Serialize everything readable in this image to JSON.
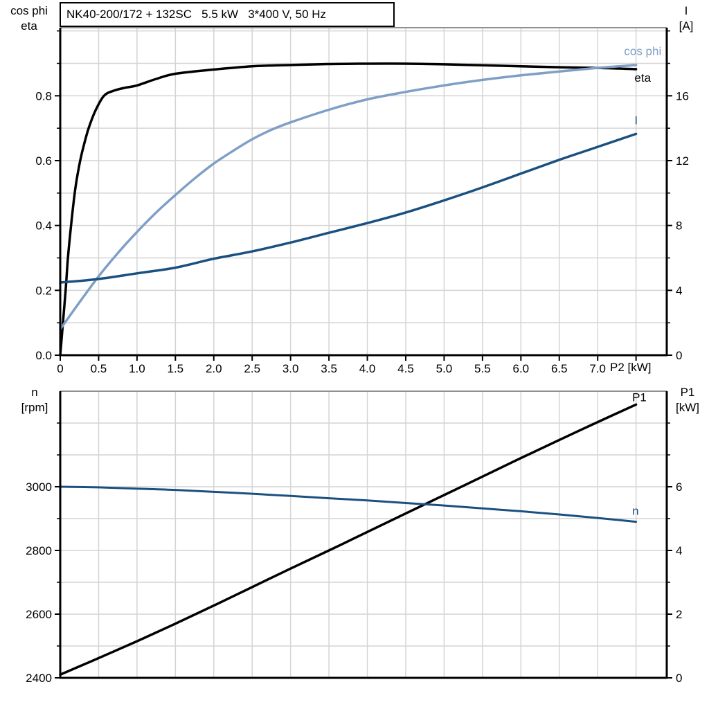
{
  "colors": {
    "black": "#000000",
    "light_blue": "#7f9fc6",
    "dark_blue": "#1a5080",
    "grid": "#d4d4d4",
    "top_border": "#909090",
    "axis": "#000000"
  },
  "chart_data": [
    {
      "type": "line",
      "title": "NK40-200/172 + 132SC   5.5 kW   3*400 V, 50 Hz",
      "xlabel": "P2 [kW]",
      "x_range": [
        0,
        7.9
      ],
      "x_grid": [
        0.5,
        1,
        1.5,
        2,
        2.5,
        3,
        3.5,
        4,
        4.5,
        5,
        5.5,
        6,
        6.5,
        7,
        7.5
      ],
      "x_ticks": [
        {
          "v": 0,
          "l": "0"
        },
        {
          "v": 0.5,
          "l": "0.5"
        },
        {
          "v": 1,
          "l": "1.0"
        },
        {
          "v": 1.5,
          "l": "1.5"
        },
        {
          "v": 2,
          "l": "2.0"
        },
        {
          "v": 2.5,
          "l": "2.5"
        },
        {
          "v": 3,
          "l": "3.0"
        },
        {
          "v": 3.5,
          "l": "3.5"
        },
        {
          "v": 4,
          "l": "4.0"
        },
        {
          "v": 4.5,
          "l": "4.5"
        },
        {
          "v": 5,
          "l": "5.0"
        },
        {
          "v": 5.5,
          "l": "5.5"
        },
        {
          "v": 6,
          "l": "6.0"
        },
        {
          "v": 6.5,
          "l": "6.5"
        },
        {
          "v": 7,
          "l": "7.0"
        },
        {
          "v": 7.5,
          "l": ""
        }
      ],
      "left_axis": {
        "title": [
          "cos phi",
          "eta"
        ],
        "range": [
          0,
          1.01
        ],
        "ticks": [
          {
            "v": 0,
            "l": "0.0"
          },
          {
            "v": 0.2,
            "l": "0.2"
          },
          {
            "v": 0.4,
            "l": "0.4"
          },
          {
            "v": 0.6,
            "l": "0.6"
          },
          {
            "v": 0.8,
            "l": "0.8"
          }
        ],
        "minor": [
          0.1,
          0.3,
          0.5,
          0.7,
          0.9,
          1.0
        ],
        "grid": [
          0.1,
          0.2,
          0.3,
          0.4,
          0.5,
          0.6,
          0.7,
          0.8,
          0.9,
          1.0
        ]
      },
      "right_axis": {
        "title": [
          "I",
          "[A]"
        ],
        "range": [
          0,
          20.2
        ],
        "ticks": [
          {
            "v": 0,
            "l": "0"
          },
          {
            "v": 4,
            "l": "4"
          },
          {
            "v": 8,
            "l": "8"
          },
          {
            "v": 12,
            "l": "12"
          },
          {
            "v": 16,
            "l": "16"
          }
        ],
        "minor": [
          2,
          6,
          10,
          14,
          18,
          20
        ],
        "grid": []
      },
      "series": [
        {
          "name": "eta",
          "axis": "left",
          "color": "#000000",
          "width": 3.5,
          "label": {
            "x": 7.48,
            "v": 0.856,
            "anchor": "start",
            "color": "#000000"
          },
          "points": [
            [
              0,
              0
            ],
            [
              0.07,
              0.2
            ],
            [
              0.1,
              0.3
            ],
            [
              0.15,
              0.42
            ],
            [
              0.2,
              0.52
            ],
            [
              0.26,
              0.6
            ],
            [
              0.31,
              0.65
            ],
            [
              0.37,
              0.7
            ],
            [
              0.46,
              0.755
            ],
            [
              0.57,
              0.8
            ],
            [
              0.7,
              0.816
            ],
            [
              0.85,
              0.825
            ],
            [
              1.0,
              0.832
            ],
            [
              1.25,
              0.852
            ],
            [
              1.5,
              0.868
            ],
            [
              2.0,
              0.881
            ],
            [
              2.5,
              0.891
            ],
            [
              3.0,
              0.895
            ],
            [
              3.5,
              0.898
            ],
            [
              4.0,
              0.899
            ],
            [
              4.5,
              0.899
            ],
            [
              5.0,
              0.897
            ],
            [
              5.5,
              0.894
            ],
            [
              6.0,
              0.891
            ],
            [
              6.5,
              0.888
            ],
            [
              7.0,
              0.886
            ],
            [
              7.5,
              0.882
            ]
          ]
        },
        {
          "name": "cos phi",
          "axis": "left",
          "color": "#7f9fc6",
          "width": 3.5,
          "label": {
            "x": 7.83,
            "v": 0.938,
            "anchor": "end",
            "color": "#7f9fc6"
          },
          "points": [
            [
              0,
              0.08
            ],
            [
              0.25,
              0.163
            ],
            [
              0.5,
              0.243
            ],
            [
              0.75,
              0.315
            ],
            [
              1.0,
              0.38
            ],
            [
              1.25,
              0.44
            ],
            [
              1.5,
              0.494
            ],
            [
              1.75,
              0.545
            ],
            [
              2.0,
              0.591
            ],
            [
              2.25,
              0.63
            ],
            [
              2.5,
              0.666
            ],
            [
              2.75,
              0.695
            ],
            [
              3.0,
              0.718
            ],
            [
              3.5,
              0.757
            ],
            [
              4.0,
              0.789
            ],
            [
              4.5,
              0.812
            ],
            [
              5.0,
              0.832
            ],
            [
              5.5,
              0.849
            ],
            [
              6.0,
              0.863
            ],
            [
              6.5,
              0.875
            ],
            [
              7.0,
              0.886
            ],
            [
              7.5,
              0.895
            ]
          ]
        },
        {
          "name": "I",
          "axis": "right",
          "color": "#1a5080",
          "width": 3.5,
          "label": {
            "x": 7.48,
            "v": 14.5,
            "anchor": "start",
            "color": "#1a5080"
          },
          "points": [
            [
              0,
              4.48
            ],
            [
              0.5,
              4.7
            ],
            [
              1.0,
              5.05
            ],
            [
              1.5,
              5.4
            ],
            [
              2.0,
              5.95
            ],
            [
              2.5,
              6.4
            ],
            [
              3.0,
              6.95
            ],
            [
              3.5,
              7.55
            ],
            [
              4.0,
              8.15
            ],
            [
              4.5,
              8.8
            ],
            [
              5.0,
              9.55
            ],
            [
              5.5,
              10.35
            ],
            [
              6.0,
              11.2
            ],
            [
              6.5,
              12.05
            ],
            [
              7.0,
              12.85
            ],
            [
              7.5,
              13.65
            ]
          ]
        }
      ]
    },
    {
      "type": "line",
      "title": "",
      "xlabel": "",
      "x_range": [
        0,
        7.9
      ],
      "x_grid": [
        0.5,
        1,
        1.5,
        2,
        2.5,
        3,
        3.5,
        4,
        4.5,
        5,
        5.5,
        6,
        6.5,
        7,
        7.5
      ],
      "x_ticks": [],
      "left_axis": {
        "title": [
          "n",
          "[rpm]"
        ],
        "range": [
          2400,
          3300
        ],
        "ticks": [
          {
            "v": 2400,
            "l": "2400"
          },
          {
            "v": 2600,
            "l": "2600"
          },
          {
            "v": 2800,
            "l": "2800"
          },
          {
            "v": 3000,
            "l": "3000"
          }
        ],
        "minor": [
          2500,
          2700,
          2900,
          3100,
          3200
        ],
        "grid": [
          2500,
          2600,
          2700,
          2800,
          2900,
          3000,
          3100,
          3200
        ]
      },
      "right_axis": {
        "title": [
          "P1",
          "[kW]"
        ],
        "range": [
          0,
          9
        ],
        "ticks": [
          {
            "v": 0,
            "l": "0"
          },
          {
            "v": 2,
            "l": "2"
          },
          {
            "v": 4,
            "l": "4"
          },
          {
            "v": 6,
            "l": "6"
          }
        ],
        "minor": [
          1,
          3,
          5,
          7,
          8
        ],
        "grid": []
      },
      "series": [
        {
          "name": "P1",
          "axis": "right",
          "color": "#000000",
          "width": 3.5,
          "label": {
            "x": 7.45,
            "v": 8.82,
            "anchor": "start",
            "color": "#000000"
          },
          "points": [
            [
              0,
              0.1
            ],
            [
              0.5,
              0.62
            ],
            [
              1.0,
              1.15
            ],
            [
              1.5,
              1.7
            ],
            [
              2.0,
              2.27
            ],
            [
              2.5,
              2.85
            ],
            [
              3.0,
              3.43
            ],
            [
              3.5,
              4.0
            ],
            [
              4.0,
              4.58
            ],
            [
              4.5,
              5.16
            ],
            [
              5.0,
              5.74
            ],
            [
              5.5,
              6.32
            ],
            [
              6.0,
              6.9
            ],
            [
              6.5,
              7.47
            ],
            [
              7.0,
              8.03
            ],
            [
              7.5,
              8.58
            ]
          ]
        },
        {
          "name": "n",
          "axis": "left",
          "color": "#1a5080",
          "width": 3,
          "label": {
            "x": 7.45,
            "v": 2925,
            "anchor": "start",
            "color": "#1a5080"
          },
          "points": [
            [
              0,
              3000
            ],
            [
              0.5,
              2998
            ],
            [
              1.0,
              2994
            ],
            [
              1.5,
              2990
            ],
            [
              2.0,
              2984
            ],
            [
              2.5,
              2978
            ],
            [
              3.0,
              2971
            ],
            [
              3.5,
              2964
            ],
            [
              4.0,
              2957
            ],
            [
              4.5,
              2949
            ],
            [
              5.0,
              2941
            ],
            [
              5.5,
              2932
            ],
            [
              6.0,
              2923
            ],
            [
              6.5,
              2913
            ],
            [
              7.0,
              2902
            ],
            [
              7.5,
              2890
            ]
          ]
        }
      ]
    }
  ]
}
